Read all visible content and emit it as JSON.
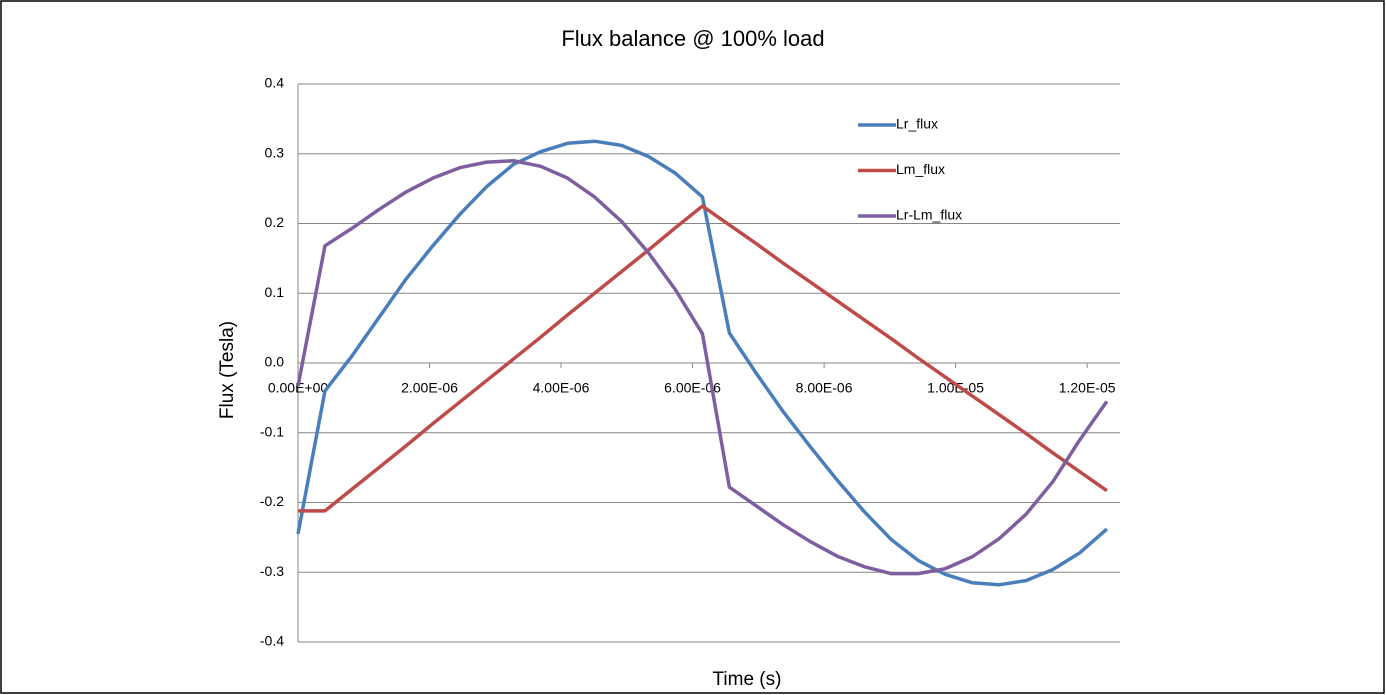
{
  "chart_data": {
    "type": "line",
    "title": "Flux balance @ 100% load",
    "x_label": "Time (s)",
    "y_label": "Flux (Tesla)",
    "x": [
      0,
      4.1e-07,
      8.2e-07,
      1.23e-06,
      1.64e-06,
      2.05e-06,
      2.46e-06,
      2.87e-06,
      3.28e-06,
      3.69e-06,
      4.1e-06,
      4.51e-06,
      4.92e-06,
      5.33e-06,
      5.74e-06,
      6.15e-06,
      6.56e-06,
      6.97e-06,
      7.38e-06,
      7.79e-06,
      8.2e-06,
      8.61e-06,
      9.02e-06,
      9.43e-06,
      9.84e-06,
      1.025e-05,
      1.066e-05,
      1.107e-05,
      1.148e-05,
      1.189e-05,
      1.23e-05
    ],
    "series": [
      {
        "name": "Lr_flux",
        "color": "#4a7ebb",
        "values": [
          -0.245,
          -0.04,
          0.01,
          0.065,
          0.12,
          0.168,
          0.213,
          0.253,
          0.285,
          0.303,
          0.315,
          0.318,
          0.312,
          0.296,
          0.272,
          0.238,
          0.043,
          -0.015,
          -0.07,
          -0.12,
          -0.168,
          -0.213,
          -0.253,
          -0.283,
          -0.303,
          -0.315,
          -0.318,
          -0.312,
          -0.296,
          -0.272,
          -0.238
        ]
      },
      {
        "name": "Lm_flux",
        "color": "#be4b48",
        "values": [
          -0.212,
          -0.212,
          -0.181,
          -0.15,
          -0.119,
          -0.087,
          -0.056,
          -0.025,
          0.006,
          0.037,
          0.069,
          0.1,
          0.131,
          0.162,
          0.194,
          0.225,
          0.198,
          0.171,
          0.143,
          0.116,
          0.089,
          0.062,
          0.035,
          0.007,
          -0.02,
          -0.047,
          -0.074,
          -0.101,
          -0.129,
          -0.156,
          -0.183
        ]
      },
      {
        "name": "Lr-Lm_flux",
        "color": "#7d5fa0",
        "values": [
          -0.033,
          0.168,
          0.193,
          0.22,
          0.245,
          0.265,
          0.28,
          0.288,
          0.29,
          0.282,
          0.265,
          0.238,
          0.203,
          0.158,
          0.105,
          0.042,
          -0.178,
          -0.205,
          -0.232,
          -0.256,
          -0.277,
          -0.292,
          -0.302,
          -0.302,
          -0.295,
          -0.278,
          -0.252,
          -0.217,
          -0.17,
          -0.11,
          -0.055
        ]
      }
    ],
    "xlim": [
      0,
      1.25e-05
    ],
    "xticks": [
      {
        "value": 0,
        "label": "0.00E+00"
      },
      {
        "value": 2e-06,
        "label": "2.00E-06"
      },
      {
        "value": 4e-06,
        "label": "4.00E-06"
      },
      {
        "value": 6e-06,
        "label": "6.00E-06"
      },
      {
        "value": 8e-06,
        "label": "8.00E-06"
      },
      {
        "value": 1e-05,
        "label": "1.00E-05"
      },
      {
        "value": 1.2e-05,
        "label": "1.20E-05"
      }
    ],
    "ylim": [
      -0.4,
      0.4
    ],
    "yticks": [
      0.4,
      0.3,
      0.2,
      0.1,
      {
        "value": 0,
        "label": "0.0"
      },
      -0.1,
      -0.2,
      -0.3,
      -0.4
    ],
    "grid": true,
    "legend": "upper right"
  }
}
